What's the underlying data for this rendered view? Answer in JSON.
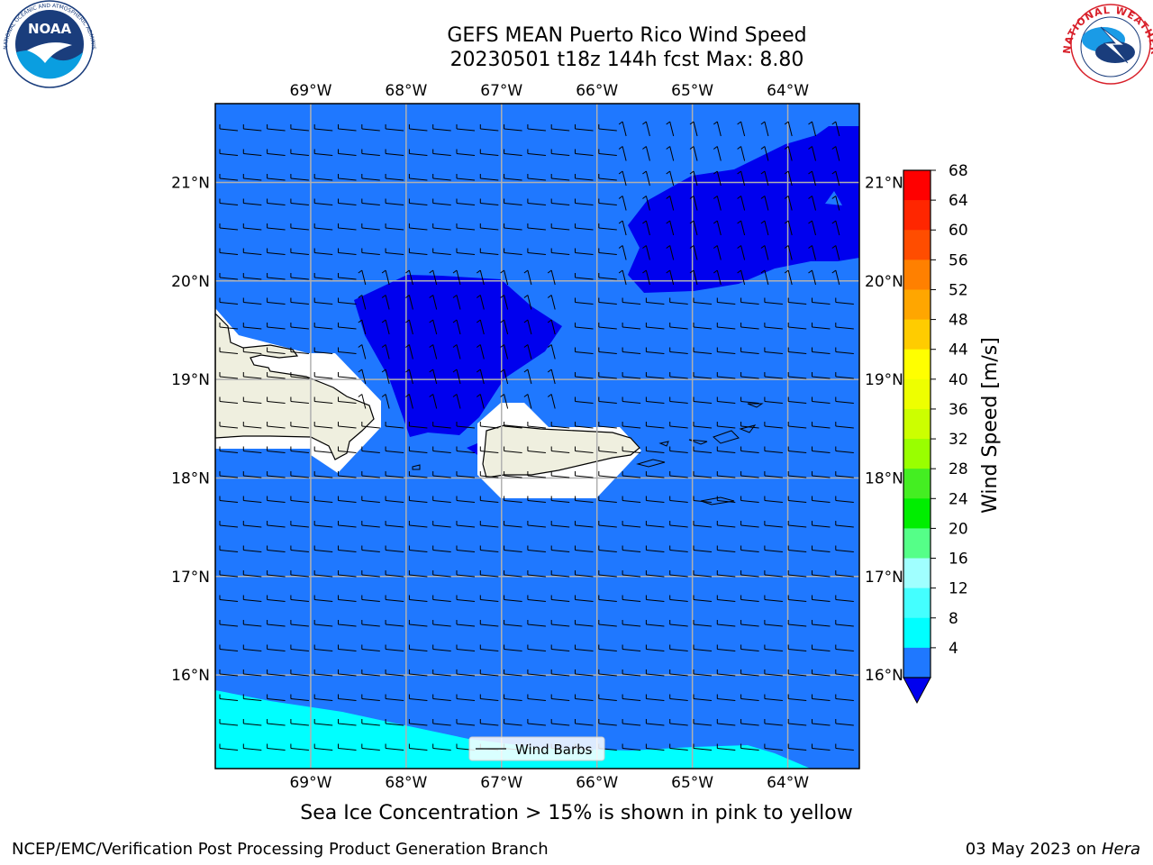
{
  "title": {
    "line1": "GEFS MEAN Puerto Rico Wind Speed",
    "line2": "20230501 t18z 144h fcst   Max: 8.80"
  },
  "map": {
    "lon_ticks": [
      "69°W",
      "68°W",
      "67°W",
      "66°W",
      "65°W",
      "64°W"
    ],
    "lat_ticks": [
      "21°N",
      "20°N",
      "19°N",
      "18°N",
      "17°N",
      "16°N"
    ],
    "legend_label": "Wind Barbs",
    "colors": {
      "ocean_base": "#1f78ff",
      "dark_blue": "#0000ee",
      "cyan": "#00ffff",
      "land": "#efefdf",
      "missing": "#ffffff"
    }
  },
  "colorbar": {
    "label": "Wind Speed [m/s]",
    "ticks": [
      "68",
      "64",
      "60",
      "56",
      "52",
      "48",
      "44",
      "40",
      "36",
      "32",
      "28",
      "24",
      "20",
      "16",
      "12",
      "8",
      "4"
    ],
    "colors": [
      "#ff0000",
      "#ff2600",
      "#ff4d00",
      "#ff8000",
      "#ffa600",
      "#ffcc00",
      "#ffff00",
      "#eeff00",
      "#ccff00",
      "#99ff00",
      "#44ee22",
      "#00ee00",
      "#55ff88",
      "#a0ffff",
      "#44ffff",
      "#00ffff",
      "#1f78ff"
    ],
    "under_color": "#0000ee"
  },
  "caption": "Sea Ice Concentration > 15% is shown in pink to yellow",
  "footer": {
    "left": "NCEP/EMC/Verification Post Processing Product Generation Branch",
    "right_date": "03 May 2023 on",
    "right_host": "Hera"
  },
  "logos": {
    "left": "NOAA",
    "right_text": "NATIONAL WEATHER SERVICE"
  }
}
